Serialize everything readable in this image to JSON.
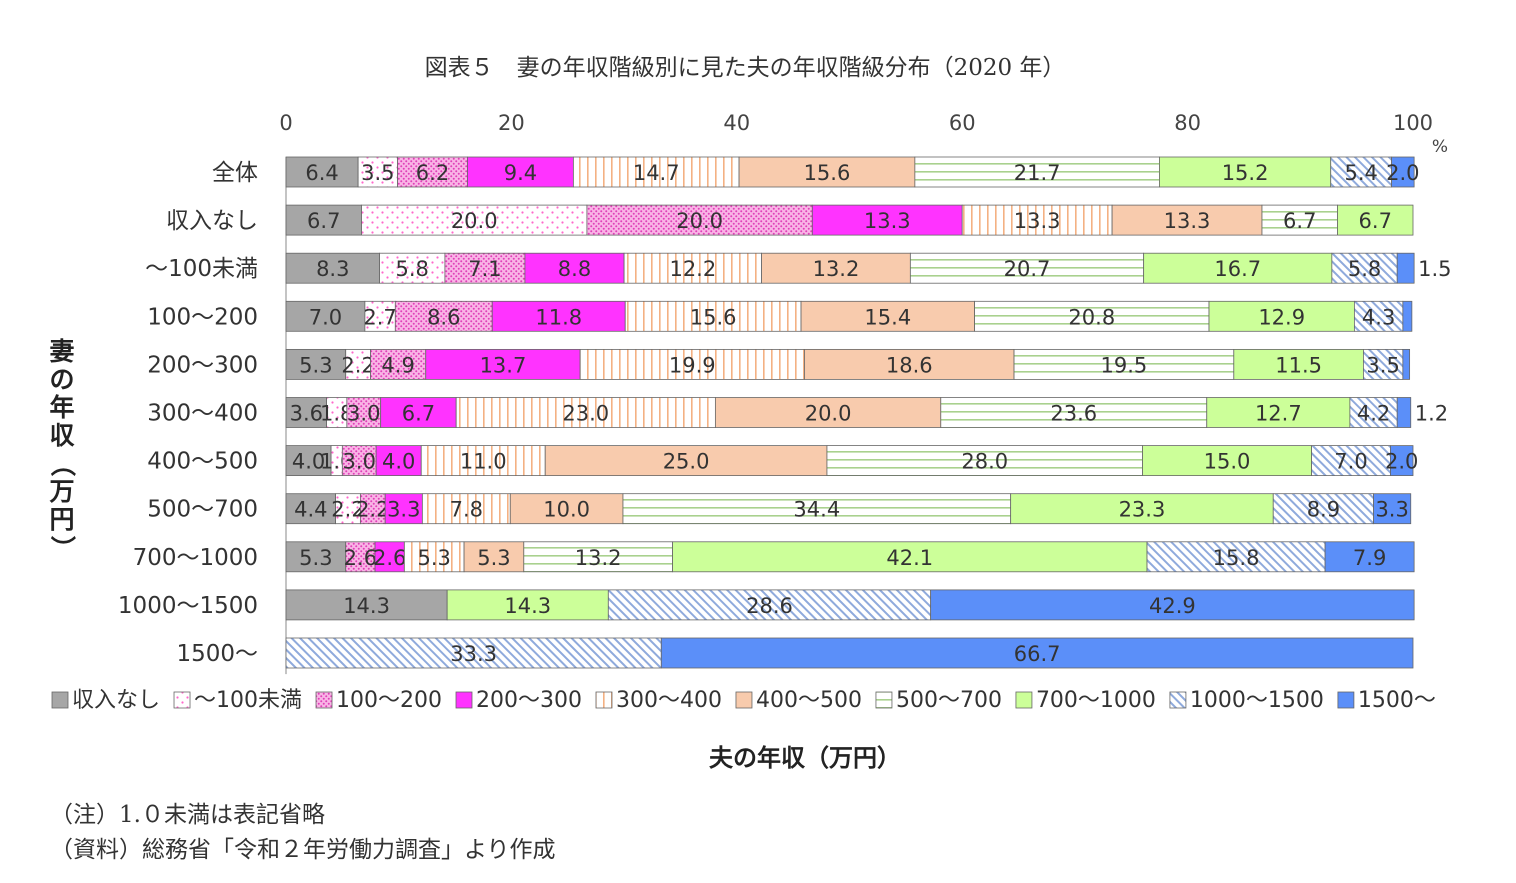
{
  "chart_data": {
    "type": "bar",
    "orientation": "horizontal",
    "stacked": true,
    "title": "図表５　妻の年収階級別に見た夫の年収階級分布（2020 年）",
    "xlabel": "夫の年収（万円）",
    "ylabel": "妻の年収（万円）",
    "x_unit": "%",
    "xlim": [
      0,
      100
    ],
    "x_ticks": [
      "0",
      "20",
      "40",
      "60",
      "80",
      "100"
    ],
    "grid": false,
    "legend_position": "bottom",
    "categories": [
      "全体",
      "収入なし",
      "～100未満",
      "100～200",
      "200～300",
      "300～400",
      "400～500",
      "500～700",
      "700～1000",
      "1000～1500",
      "1500～"
    ],
    "series": [
      {
        "name": "収入なし",
        "color": "#a6a6a6",
        "pattern": "solid",
        "values": [
          6.4,
          6.7,
          8.3,
          7.0,
          5.3,
          3.6,
          4.0,
          4.4,
          5.3,
          14.3,
          0
        ]
      },
      {
        "name": "～100未満",
        "color": "#ff66cc",
        "pattern": "dots",
        "values": [
          3.5,
          20.0,
          5.8,
          2.7,
          2.2,
          1.8,
          1.0,
          2.2,
          0,
          0,
          0
        ]
      },
      {
        "name": "100～200",
        "color": "#ff66cc",
        "pattern": "dense-dots",
        "values": [
          6.2,
          20.0,
          7.1,
          8.6,
          4.9,
          3.0,
          3.0,
          2.2,
          2.6,
          0,
          0
        ]
      },
      {
        "name": "200～300",
        "color": "#ff33ff",
        "pattern": "solid",
        "values": [
          9.4,
          13.3,
          8.8,
          11.8,
          13.7,
          6.7,
          4.0,
          3.3,
          2.6,
          0,
          0
        ]
      },
      {
        "name": "300～400",
        "color": "#f4b183",
        "pattern": "vertical-lines",
        "values": [
          14.7,
          13.3,
          12.2,
          15.6,
          19.9,
          23.0,
          11.0,
          7.8,
          5.3,
          0,
          0
        ]
      },
      {
        "name": "400～500",
        "color": "#f8cbad",
        "pattern": "solid",
        "values": [
          15.6,
          13.3,
          13.2,
          15.4,
          18.6,
          20.0,
          25.0,
          10.0,
          5.3,
          0,
          0
        ]
      },
      {
        "name": "500～700",
        "color": "#a9d18e",
        "pattern": "horizontal-lines",
        "values": [
          21.7,
          6.7,
          20.7,
          20.8,
          19.5,
          23.6,
          28.0,
          34.4,
          13.2,
          0,
          0
        ]
      },
      {
        "name": "700～1000",
        "color": "#ccff99",
        "pattern": "solid",
        "values": [
          15.2,
          6.7,
          16.7,
          12.9,
          11.5,
          12.7,
          15.0,
          23.3,
          42.1,
          14.3,
          0
        ]
      },
      {
        "name": "1000～1500",
        "color": "#8faadc",
        "pattern": "diagonal-lines",
        "values": [
          5.4,
          0,
          5.8,
          4.3,
          3.5,
          4.2,
          7.0,
          8.9,
          15.8,
          28.6,
          33.3
        ]
      },
      {
        "name": "1500～",
        "color": "#5b8ff9",
        "pattern": "solid",
        "values": [
          2.0,
          0,
          1.5,
          0.8,
          0.6,
          1.2,
          2.0,
          3.3,
          7.9,
          42.9,
          66.7
        ]
      }
    ],
    "data_labels": [
      [
        "6.4",
        "3.5",
        "6.2",
        "9.4",
        "14.7",
        "15.6",
        "21.7",
        "15.2",
        "5.4",
        "2.0"
      ],
      [
        "6.7",
        "20.0",
        "20.0",
        "13.3",
        "13.3",
        "13.3",
        "6.7",
        "6.7",
        "",
        ""
      ],
      [
        "8.3",
        "5.8",
        "7.1",
        "8.8",
        "12.2",
        "13.2",
        "20.7",
        "16.7",
        "5.8",
        "1.5"
      ],
      [
        "7.0",
        "2.7",
        "8.6",
        "11.8",
        "15.6",
        "15.4",
        "20.8",
        "12.9",
        "4.3",
        ""
      ],
      [
        "5.3",
        "2.2",
        "4.9",
        "13.7",
        "19.9",
        "18.6",
        "19.5",
        "11.5",
        "3.5",
        ""
      ],
      [
        "3.6",
        "1.8",
        "3.0",
        "6.7",
        "23.0",
        "20.0",
        "23.6",
        "12.7",
        "4.2",
        "1.2"
      ],
      [
        "4.0",
        "1.0",
        "3.0",
        "4.0",
        "11.0",
        "25.0",
        "28.0",
        "15.0",
        "7.0",
        "2.0"
      ],
      [
        "4.4",
        "2.2",
        "2.2",
        "3.3",
        "7.8",
        "10.0",
        "34.4",
        "23.3",
        "8.9",
        "3.3"
      ],
      [
        "5.3",
        "",
        "2.6",
        "2.6",
        "5.3",
        "5.3",
        "13.2",
        "42.1",
        "15.8",
        "7.9"
      ],
      [
        "14.3",
        "",
        "",
        "",
        "",
        "",
        "",
        "14.3",
        "28.6",
        "42.9"
      ],
      [
        "",
        "",
        "",
        "",
        "",
        "",
        "",
        "",
        "33.3",
        "66.7"
      ]
    ]
  },
  "notes": [
    "（注）1.０未満は表記省略",
    "（資料）総務省「令和２年労働力調査」より作成"
  ]
}
